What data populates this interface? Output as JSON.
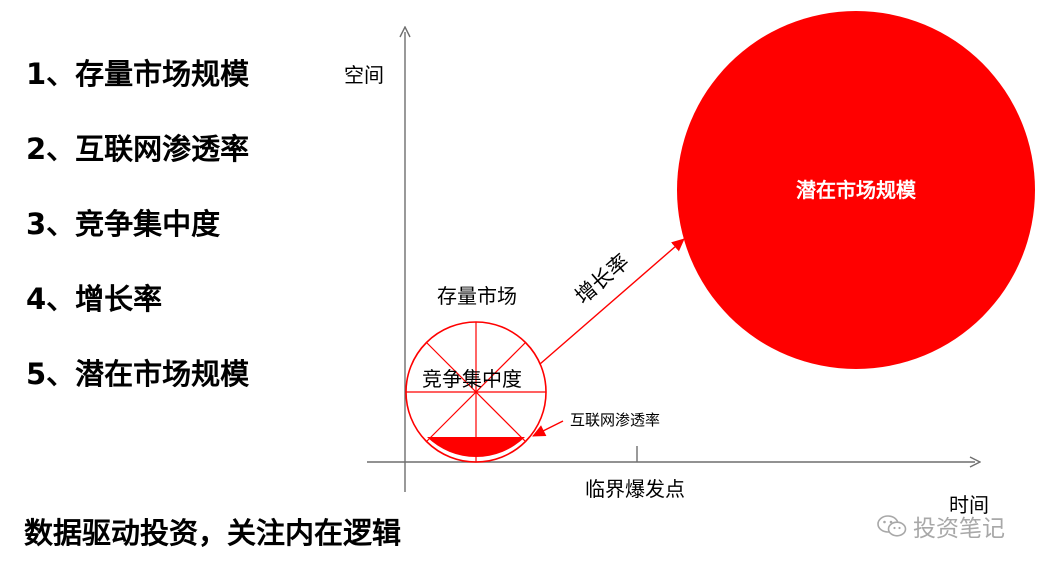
{
  "list": [
    "1、存量市场规模",
    "2、互联网渗透率",
    "3、竞争集中度",
    "4、增长率",
    "5、潜在市场规模"
  ],
  "footer": "数据驱动投资，关注内在逻辑",
  "diagram": {
    "y_axis_label": "空间",
    "x_axis_label": "时间",
    "existing_market_label": "存量市场",
    "concentration_label": "竞争集中度",
    "penetration_label": "互联网渗透率",
    "growth_label": "增长率",
    "potential_label": "潜在市场规模",
    "tipping_point_label": "临界爆发点"
  },
  "watermark": {
    "icon": "wechat-icon",
    "text": "投资笔记"
  },
  "colors": {
    "red": "#ff0000",
    "axis": "#6e6e6e"
  }
}
